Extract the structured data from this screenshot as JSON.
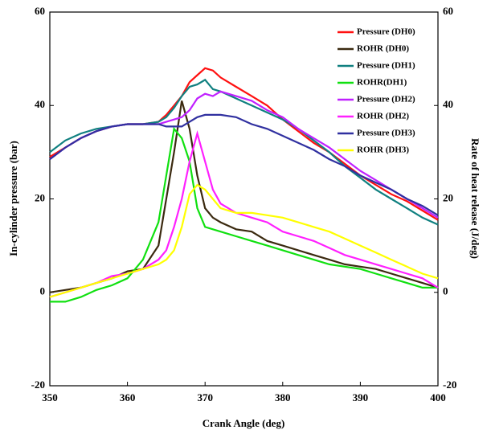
{
  "chart_data": {
    "type": "line",
    "x_label": "Crank Angle (deg)",
    "y_label": "In-cylinder pressure (bar)",
    "y2_label": "Rate of heat release (J/deg)",
    "xlim": [
      350,
      400
    ],
    "xticks": [
      350,
      360,
      370,
      380,
      390,
      400
    ],
    "ylim": [
      -20,
      60
    ],
    "yticks": [
      -20,
      0,
      20,
      40,
      60
    ],
    "y2lim": [
      -20,
      60
    ],
    "y2ticks": [
      -20,
      0,
      20,
      40,
      60
    ],
    "legend": "upper right",
    "x": [
      350,
      352,
      354,
      356,
      358,
      360,
      362,
      364,
      365,
      366,
      367,
      368,
      369,
      370,
      371,
      372,
      374,
      376,
      378,
      380,
      382,
      384,
      386,
      388,
      390,
      392,
      394,
      396,
      398,
      400
    ],
    "series": [
      {
        "name": "Pressure (DH0)",
        "color": "#ff1010",
        "values": [
          29,
          31,
          33,
          34.5,
          35.5,
          36,
          36,
          36.5,
          38,
          40,
          42,
          45,
          46.5,
          48,
          47.5,
          46,
          44,
          42,
          40,
          37,
          34.5,
          32,
          30,
          27.5,
          25,
          23,
          21,
          19.5,
          17.5,
          15.5
        ]
      },
      {
        "name": "ROHR (DH0)",
        "color": "#3b2a10",
        "axis": "y2",
        "values": [
          0,
          0.5,
          1,
          2,
          3,
          4.5,
          5,
          10,
          20,
          30,
          41,
          35,
          25,
          18,
          16,
          15,
          13.5,
          13,
          11,
          10,
          9,
          8,
          7,
          6,
          5.5,
          5,
          4,
          3,
          2,
          1
        ]
      },
      {
        "name": "Pressure (DH1)",
        "color": "#108080",
        "values": [
          30,
          32.5,
          34,
          35,
          35.5,
          36,
          36,
          36.5,
          37.5,
          39.5,
          42,
          44,
          44.5,
          45.5,
          43.5,
          43,
          41.5,
          40,
          38.5,
          37,
          35,
          32.5,
          30,
          27,
          24.5,
          22,
          20,
          18,
          16,
          14.5
        ]
      },
      {
        "name": "ROHR(DH1)",
        "color": "#10e010",
        "axis": "y2",
        "values": [
          -2,
          -2,
          -1,
          0.5,
          1.5,
          3,
          7,
          15,
          25,
          35,
          33,
          28,
          18,
          14,
          13.5,
          13,
          12,
          11,
          10,
          9,
          8,
          7,
          6,
          5.5,
          5,
          4,
          3,
          2,
          1,
          1
        ]
      },
      {
        "name": "Pressure (DH2)",
        "color": "#c020ff",
        "values": [
          28.5,
          31,
          33,
          34.5,
          35.5,
          36,
          36,
          36,
          36.5,
          37,
          37.5,
          39,
          41.5,
          42.5,
          42,
          43,
          42,
          41,
          39,
          37.5,
          35,
          33,
          31,
          28.5,
          26,
          24,
          22,
          20,
          18,
          16
        ]
      },
      {
        "name": "ROHR (DH2)",
        "color": "#ff20ff",
        "axis": "y2",
        "values": [
          -1,
          0,
          1,
          2,
          3.5,
          4,
          5,
          7,
          9,
          14,
          20,
          28,
          34,
          28,
          22,
          19,
          17,
          16,
          15,
          13,
          12,
          11,
          9.5,
          8,
          7,
          6,
          5,
          4,
          3,
          1
        ]
      },
      {
        "name": "Pressure (DH3)",
        "color": "#3030a0",
        "values": [
          28.5,
          31,
          33,
          34.5,
          35.5,
          36,
          36,
          36,
          35.5,
          35.5,
          35.5,
          36.5,
          37.5,
          38,
          38,
          38,
          37.5,
          36,
          35,
          33.5,
          32,
          30.5,
          28.5,
          27,
          25,
          23.5,
          22,
          20,
          18.5,
          16.5
        ]
      },
      {
        "name": "ROHR (DH3)",
        "color": "#ffff00",
        "axis": "y2",
        "values": [
          -1,
          0,
          1,
          2,
          3,
          4,
          5,
          6,
          7,
          9,
          14,
          21,
          23,
          22,
          20,
          18,
          17,
          17,
          16.5,
          16,
          15,
          14,
          13,
          11.5,
          10,
          8.5,
          7,
          5.5,
          4,
          3
        ]
      }
    ]
  }
}
